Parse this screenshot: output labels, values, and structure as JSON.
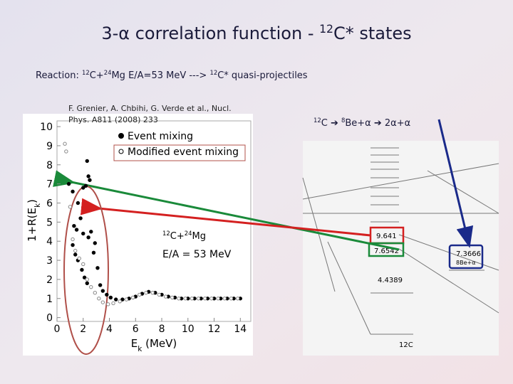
{
  "slide": {
    "title": [
      {
        "text": "3-α correlation function - "
      },
      {
        "text": "12",
        "sup": true
      },
      {
        "text": "C* states"
      }
    ],
    "reaction": [
      {
        "text": "Reaction: "
      },
      {
        "text": "12",
        "sup": true
      },
      {
        "text": "C+"
      },
      {
        "text": "24",
        "sup": true
      },
      {
        "text": "Mg E/A=53 MeV ---> "
      },
      {
        "text": "12",
        "sup": true
      },
      {
        "text": "C* quasi-projectiles"
      }
    ],
    "reference": [
      "F. Grenier, A. Chbihi, G. Verde et al., Nucl.",
      "Phys. A811 (2008) 233"
    ],
    "decay": [
      {
        "text": "12",
        "sup": true
      },
      {
        "text": "C ➔ "
      },
      {
        "text": "8",
        "sup": true
      },
      {
        "text": "Be+α ➔ 2α+α"
      }
    ],
    "levels": {
      "red": "9.641",
      "green": "7.6542",
      "blue": "7.3666",
      "blue_sub": "8Be+α",
      "low": "4.4389",
      "nucleus": "12C"
    }
  },
  "chart_data": {
    "type": "scatter",
    "xlabel": [
      {
        "text": "E"
      },
      {
        "text": "k",
        "sub": true
      },
      {
        "text": " (MeV)"
      }
    ],
    "ylabel": [
      {
        "text": "1+R(E"
      },
      {
        "text": "k",
        "sub": true
      },
      {
        "text": ")"
      }
    ],
    "annotations": [
      [
        {
          "text": "12",
          "sup": true
        },
        {
          "text": "C+"
        },
        {
          "text": "24",
          "sup": true
        },
        {
          "text": "Mg"
        }
      ],
      [
        {
          "text": "E/A = 53 MeV"
        }
      ]
    ],
    "xlim": [
      0,
      14.8
    ],
    "ylim": [
      -0.2,
      10.3
    ],
    "xticks": [
      0,
      2,
      4,
      6,
      8,
      10,
      12,
      14
    ],
    "yticks": [
      0,
      1,
      2,
      3,
      4,
      5,
      6,
      7,
      8,
      9,
      10
    ],
    "series": [
      {
        "name": "Event mixing",
        "color": "#000000",
        "filled": true,
        "x": [
          0.9,
          1.2,
          1.6,
          1.8,
          2.0,
          2.2,
          2.3,
          2.4,
          2.5,
          1.3,
          1.5,
          1.2,
          1.4,
          1.6,
          1.9,
          2.1,
          2.3,
          2.0,
          2.4,
          2.6,
          2.9,
          2.8,
          3.1,
          3.3,
          3.5,
          3.8,
          4.1,
          4.5,
          5.0,
          5.5,
          6.0,
          6.5,
          7.0,
          7.5,
          8.0,
          8.5,
          9.0,
          9.5,
          10.0,
          10.5,
          11.0,
          11.5,
          12.0,
          12.5,
          13.0,
          13.5,
          14.0
        ],
        "values": [
          7.0,
          6.6,
          6.0,
          5.2,
          6.8,
          6.9,
          8.2,
          7.4,
          7.2,
          4.8,
          4.6,
          3.8,
          3.3,
          3.0,
          2.5,
          2.1,
          1.8,
          4.4,
          4.2,
          4.5,
          3.9,
          3.4,
          2.6,
          1.7,
          1.4,
          1.2,
          1.05,
          0.95,
          0.95,
          1.0,
          1.1,
          1.25,
          1.35,
          1.3,
          1.2,
          1.1,
          1.05,
          1.0,
          1.0,
          1.0,
          1.0,
          1.0,
          1.0,
          1.0,
          1.0,
          1.0,
          1.0
        ]
      },
      {
        "name": "Modified event mixing",
        "color": "#000000",
        "filled": false,
        "x": [
          0.6,
          0.7,
          1.0,
          1.2,
          1.4,
          1.7,
          2.0,
          2.3,
          2.6,
          2.9,
          3.2,
          3.5,
          3.9,
          4.3,
          4.8,
          5.3,
          5.8,
          6.3,
          6.8,
          7.3,
          7.8,
          8.3,
          8.8,
          9.3,
          9.8,
          10.3,
          10.8,
          11.3,
          11.8,
          12.3,
          12.8,
          13.3,
          13.8
        ],
        "values": [
          9.1,
          8.7,
          5.8,
          4.1,
          3.5,
          3.1,
          2.8,
          2.0,
          1.6,
          1.3,
          1.0,
          0.8,
          0.7,
          0.75,
          0.85,
          0.95,
          1.05,
          1.2,
          1.3,
          1.3,
          1.2,
          1.1,
          1.05,
          1.0,
          1.0,
          1.0,
          1.0,
          1.0,
          1.0,
          1.0,
          1.0,
          1.0,
          1.0
        ]
      }
    ]
  }
}
